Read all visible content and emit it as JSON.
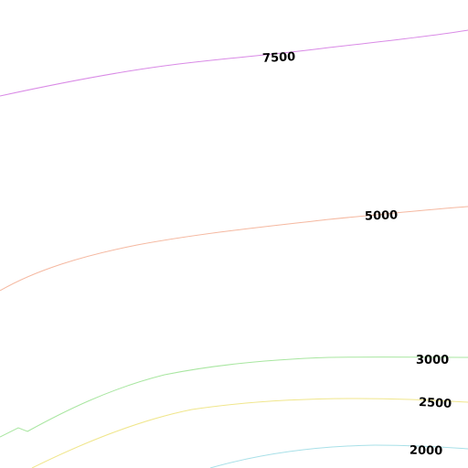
{
  "map": {
    "type": "contour-tile",
    "contours": [
      {
        "label": "7500",
        "color": "#d98ae6"
      },
      {
        "label": "5000",
        "color": "#f5b8a0"
      },
      {
        "label": "3000",
        "color": "#a8e6a0"
      },
      {
        "label": "2500",
        "color": "#f0e68c"
      },
      {
        "label": "2000",
        "color": "#a8e0e8"
      }
    ]
  }
}
